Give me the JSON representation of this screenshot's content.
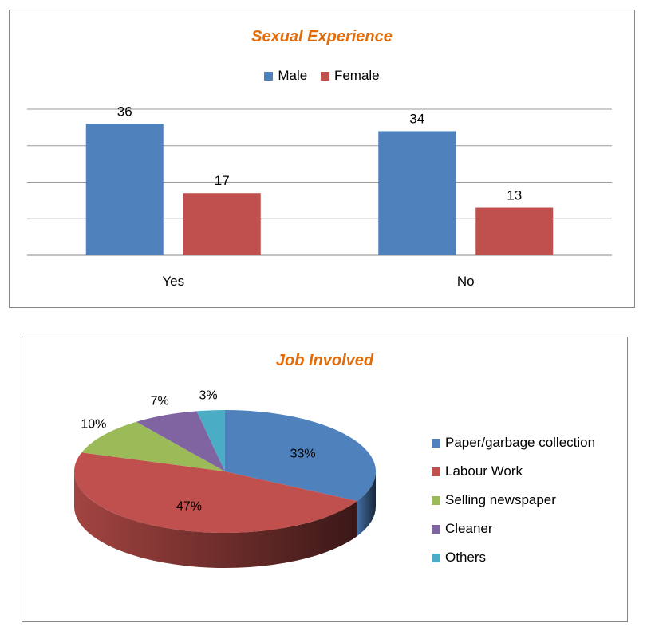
{
  "chart_data": [
    {
      "type": "bar",
      "title": "Sexual Experience",
      "categories": [
        "Yes",
        "No"
      ],
      "series": [
        {
          "name": "Male",
          "values": [
            36,
            34
          ],
          "color": "#4F81BD"
        },
        {
          "name": "Female",
          "values": [
            17,
            13
          ],
          "color": "#C0504D"
        }
      ],
      "ylim": [
        0,
        40
      ],
      "grid": true,
      "legend": "top",
      "data_labels": true
    },
    {
      "type": "pie",
      "title": "Job Involved",
      "style": "3d",
      "labels": [
        "Paper/garbage collection",
        "Labour Work",
        "Selling newspaper",
        "Cleaner",
        "Others"
      ],
      "values": [
        33,
        47,
        10,
        7,
        3
      ],
      "value_labels": [
        "33%",
        "47%",
        "10%",
        "7%",
        "3%"
      ],
      "colors": [
        "#4F81BD",
        "#C0504D",
        "#9BBB59",
        "#8064A2",
        "#4BACC6"
      ],
      "legend": "right"
    }
  ]
}
